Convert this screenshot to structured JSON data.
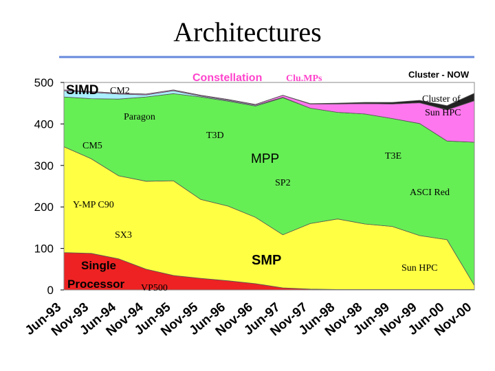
{
  "slide": {
    "title": "Architectures"
  },
  "chart_data": {
    "type": "area",
    "stacked": true,
    "title": "",
    "xlabel": "",
    "ylabel": "",
    "ylim": [
      0,
      500
    ],
    "yticks": [
      0,
      100,
      200,
      300,
      400,
      500
    ],
    "x": [
      "Jun-93",
      "Nov-93",
      "Jun-94",
      "Nov-94",
      "Jun-95",
      "Nov-95",
      "Jun-96",
      "Nov-96",
      "Jun-97",
      "Nov-97",
      "Jun-98",
      "Nov-98",
      "Jun-99",
      "Nov-99",
      "Jun-00",
      "Nov-00"
    ],
    "series": [
      {
        "name": "Single Processor",
        "color": "#ee2222",
        "values": [
          90,
          88,
          75,
          50,
          35,
          28,
          22,
          15,
          5,
          2,
          1,
          1,
          1,
          1,
          1,
          1
        ]
      },
      {
        "name": "SMP",
        "color": "#ffff44",
        "values": [
          255,
          228,
          200,
          212,
          228,
          190,
          180,
          160,
          128,
          158,
          170,
          158,
          152,
          130,
          120,
          10
        ]
      },
      {
        "name": "MPP",
        "color": "#66ee55",
        "values": [
          120,
          145,
          185,
          203,
          210,
          247,
          253,
          268,
          330,
          278,
          257,
          265,
          260,
          270,
          238,
          345
        ]
      },
      {
        "name": "SIMD",
        "color": "#aaeeff",
        "values": [
          15,
          15,
          12,
          5,
          7,
          2,
          2,
          2,
          1,
          0,
          0,
          0,
          0,
          0,
          0,
          0
        ]
      },
      {
        "name": "Constellation",
        "color": "#ff77ee",
        "values": [
          2,
          2,
          2,
          2,
          2,
          2,
          2,
          2,
          5,
          10,
          20,
          25,
          35,
          50,
          75,
          100
        ]
      },
      {
        "name": "Cluster - NOW",
        "color": "#222222",
        "values": [
          0,
          0,
          0,
          0,
          0,
          0,
          0,
          0,
          0,
          1,
          2,
          3,
          4,
          6,
          10,
          18
        ]
      }
    ],
    "annotations": {
      "simd": "SIMD",
      "cm2": "CM2",
      "constellation": "Constellation",
      "clumps": "Clu.MPs",
      "cluster_now": "Cluster - NOW",
      "paragon": "Paragon",
      "t3d": "T3D",
      "cm5": "CM5",
      "mpp": "MPP",
      "t3e": "T3E",
      "cluster_of": "Cluster of",
      "sun_hpc_top": "Sun HPC",
      "sp2": "SP2",
      "asci_red": "ASCI Red",
      "ymp": "Y-MP C90",
      "sx3": "SX3",
      "single": "Single",
      "processor": "Processor",
      "vp500": "VP500",
      "smp": "SMP",
      "sun_hpc": "Sun HPC"
    }
  }
}
